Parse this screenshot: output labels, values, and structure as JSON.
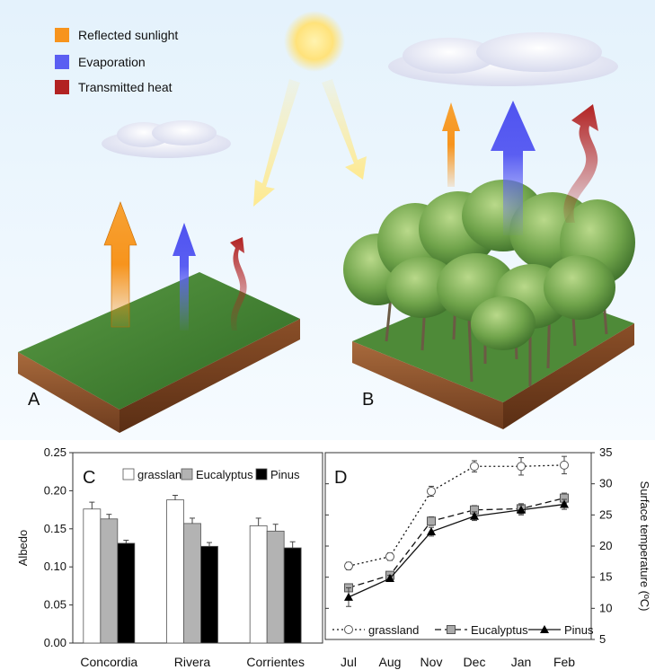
{
  "legend": {
    "items": [
      {
        "label": "Reflected sunlight",
        "color": "#f7941d"
      },
      {
        "label": "Evaporation",
        "color": "#5a5ef2"
      },
      {
        "label": "Transmitted heat",
        "color": "#b22222"
      }
    ]
  },
  "panels": {
    "a": "A",
    "b": "B",
    "c": "C",
    "d": "D"
  },
  "colors": {
    "sky": "#dceefa",
    "grass": "#3f7d2f",
    "soil": "#8a4f28",
    "sun": "#ffe27a"
  },
  "chart_data": [
    {
      "type": "bar",
      "panel": "C",
      "ylabel": "Albedo",
      "ylim": [
        0,
        0.25
      ],
      "yticks": [
        "0.00",
        "0.05",
        "0.10",
        "0.15",
        "0.20",
        "0.25"
      ],
      "categories": [
        "Concordia",
        "Rivera",
        "Corrientes"
      ],
      "legend_placement": "top-right",
      "series": [
        {
          "name": "grassland",
          "color": "#ffffff",
          "values": [
            0.176,
            0.188,
            0.154
          ],
          "errors": [
            0.009,
            0.006,
            0.01
          ]
        },
        {
          "name": "Eucalyptus",
          "color": "#b3b3b3",
          "values": [
            0.163,
            0.157,
            0.147
          ],
          "errors": [
            0.006,
            0.007,
            0.009
          ]
        },
        {
          "name": "Pinus",
          "color": "#000000",
          "values": [
            0.131,
            0.127,
            0.125
          ],
          "errors": [
            0.004,
            0.005,
            0.008
          ]
        }
      ]
    },
    {
      "type": "line",
      "panel": "D",
      "ylabel": "Surface temperature (ºC)",
      "ylim": [
        5,
        35
      ],
      "yticks": [
        "5",
        "10",
        "15",
        "20",
        "25",
        "30",
        "35"
      ],
      "categories": [
        "Jul",
        "Aug",
        "Nov",
        "Dec",
        "Jan",
        "Feb"
      ],
      "legend_placement": "bottom",
      "series": [
        {
          "name": "grassland",
          "marker": "circle-open",
          "dash": "dotted",
          "values": [
            16.8,
            18.3,
            28.8,
            32.8,
            32.8,
            33.0
          ],
          "errors": [
            0.6,
            0.6,
            0.8,
            0.9,
            1.4,
            1.4
          ]
        },
        {
          "name": "Eucalyptus",
          "marker": "square-gray",
          "dash": "dashed",
          "values": [
            13.3,
            15.3,
            24.0,
            25.8,
            26.0,
            27.7
          ],
          "errors": [
            0.6,
            0.5,
            0.7,
            0.7,
            0.8,
            0.8
          ]
        },
        {
          "name": "Pinus",
          "marker": "triangle-black",
          "dash": "solid",
          "values": [
            11.8,
            14.8,
            22.3,
            24.8,
            25.8,
            26.7
          ],
          "errors": [
            1.5,
            0.5,
            0.7,
            0.7,
            0.8,
            0.8
          ]
        }
      ]
    }
  ]
}
